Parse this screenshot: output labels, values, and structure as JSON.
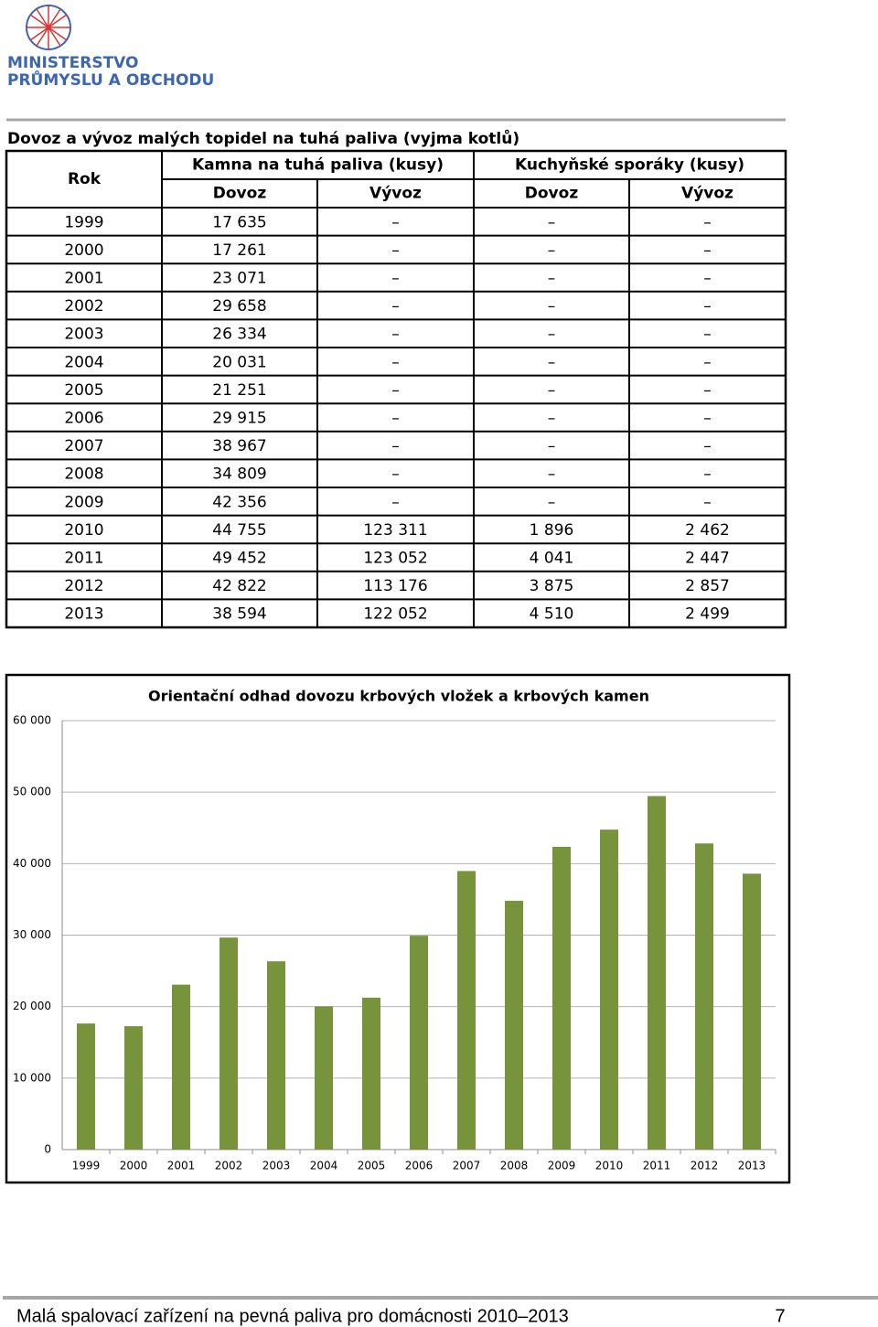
{
  "logo": {
    "line1": "MINISTERSTVO",
    "line2": "PRŮMYSLU A OBCHODU"
  },
  "table": {
    "title": "Dovoz a vývoz malých topidel na tuhá paliva (vyjma kotlů)",
    "header": {
      "rok": "Rok",
      "groups": [
        "Kamna na tuhá paliva (kusy)",
        "Kuchyňské sporáky (kusy)"
      ],
      "sub": [
        "Dovoz",
        "Vývoz",
        "Dovoz",
        "Vývoz"
      ]
    },
    "rows": [
      [
        "1999",
        "17 635",
        "–",
        "–",
        "–"
      ],
      [
        "2000",
        "17 261",
        "–",
        "–",
        "–"
      ],
      [
        "2001",
        "23 071",
        "–",
        "–",
        "–"
      ],
      [
        "2002",
        "29 658",
        "–",
        "–",
        "–"
      ],
      [
        "2003",
        "26 334",
        "–",
        "–",
        "–"
      ],
      [
        "2004",
        "20 031",
        "–",
        "–",
        "–"
      ],
      [
        "2005",
        "21 251",
        "–",
        "–",
        "–"
      ],
      [
        "2006",
        "29 915",
        "–",
        "–",
        "–"
      ],
      [
        "2007",
        "38 967",
        "–",
        "–",
        "–"
      ],
      [
        "2008",
        "34 809",
        "–",
        "–",
        "–"
      ],
      [
        "2009",
        "42 356",
        "–",
        "–",
        "–"
      ],
      [
        "2010",
        "44 755",
        "123 311",
        "1 896",
        "2 462"
      ],
      [
        "2011",
        "49 452",
        "123 052",
        "4 041",
        "2 447"
      ],
      [
        "2012",
        "42 822",
        "113 176",
        "3 875",
        "2 857"
      ],
      [
        "2013",
        "38 594",
        "122 052",
        "4 510",
        "2 499"
      ]
    ]
  },
  "chart_data": {
    "type": "bar",
    "title": "Orientační odhad dovozu krbových vložek a krbových kamen",
    "categories": [
      "1999",
      "2000",
      "2001",
      "2002",
      "2003",
      "2004",
      "2005",
      "2006",
      "2007",
      "2008",
      "2009",
      "2010",
      "2011",
      "2012",
      "2013"
    ],
    "values": [
      17635,
      17261,
      23071,
      29658,
      26334,
      20031,
      21251,
      29915,
      38967,
      34809,
      42356,
      44755,
      49452,
      42822,
      38594
    ],
    "color": "#77933c",
    "ylim": [
      0,
      60000
    ],
    "yticks": [
      0,
      {
        "value": 10000,
        "label": "10 000"
      },
      {
        "value": 20000,
        "label": "20 000"
      },
      {
        "value": 30000,
        "label": "30 000"
      },
      {
        "value": 40000,
        "label": "40 000"
      },
      {
        "value": 50000,
        "label": "50 000"
      },
      {
        "value": 60000,
        "label": "60 000"
      }
    ],
    "grid": true
  },
  "footer": {
    "text": "Malá spalovací zařízení na pevná paliva pro domácnosti 2010–2013",
    "page": "7"
  }
}
